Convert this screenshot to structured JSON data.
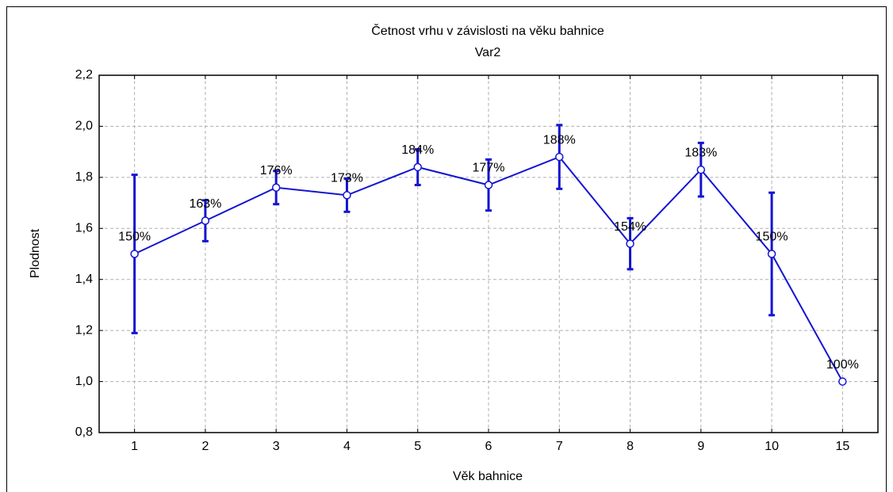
{
  "chart_data": {
    "type": "line",
    "title": "Četnost vrhu v závislosti na věku bahnice",
    "subtitle": "Var2",
    "x_label": "Věk bahnice",
    "y_label": "Plodnost",
    "categories": [
      "1",
      "2",
      "3",
      "4",
      "5",
      "6",
      "7",
      "8",
      "9",
      "10",
      "15"
    ],
    "series": [
      {
        "name": "Var2",
        "color": "#1414d2",
        "values": [
          1.5,
          1.63,
          1.76,
          1.73,
          1.84,
          1.77,
          1.88,
          1.54,
          1.83,
          1.5,
          1.0
        ],
        "value_labels": [
          "150%",
          "163%",
          "176%",
          "173%",
          "184%",
          "177%",
          "188%",
          "154%",
          "183%",
          "150%",
          "100%"
        ],
        "errors": [
          0.31,
          0.08,
          0.065,
          0.065,
          0.07,
          0.1,
          0.125,
          0.1,
          0.105,
          0.24,
          null
        ]
      }
    ],
    "ylim": [
      0.8,
      2.2
    ],
    "yticks": [
      {
        "value": 0.8,
        "label": "0,8"
      },
      {
        "value": 1.0,
        "label": "1,0"
      },
      {
        "value": 1.2,
        "label": "1,2"
      },
      {
        "value": 1.4,
        "label": "1,4"
      },
      {
        "value": 1.6,
        "label": "1,6"
      },
      {
        "value": 1.8,
        "label": "1,8"
      },
      {
        "value": 2.0,
        "label": "2,0"
      },
      {
        "value": 2.2,
        "label": "2,2"
      }
    ],
    "grid": true
  }
}
